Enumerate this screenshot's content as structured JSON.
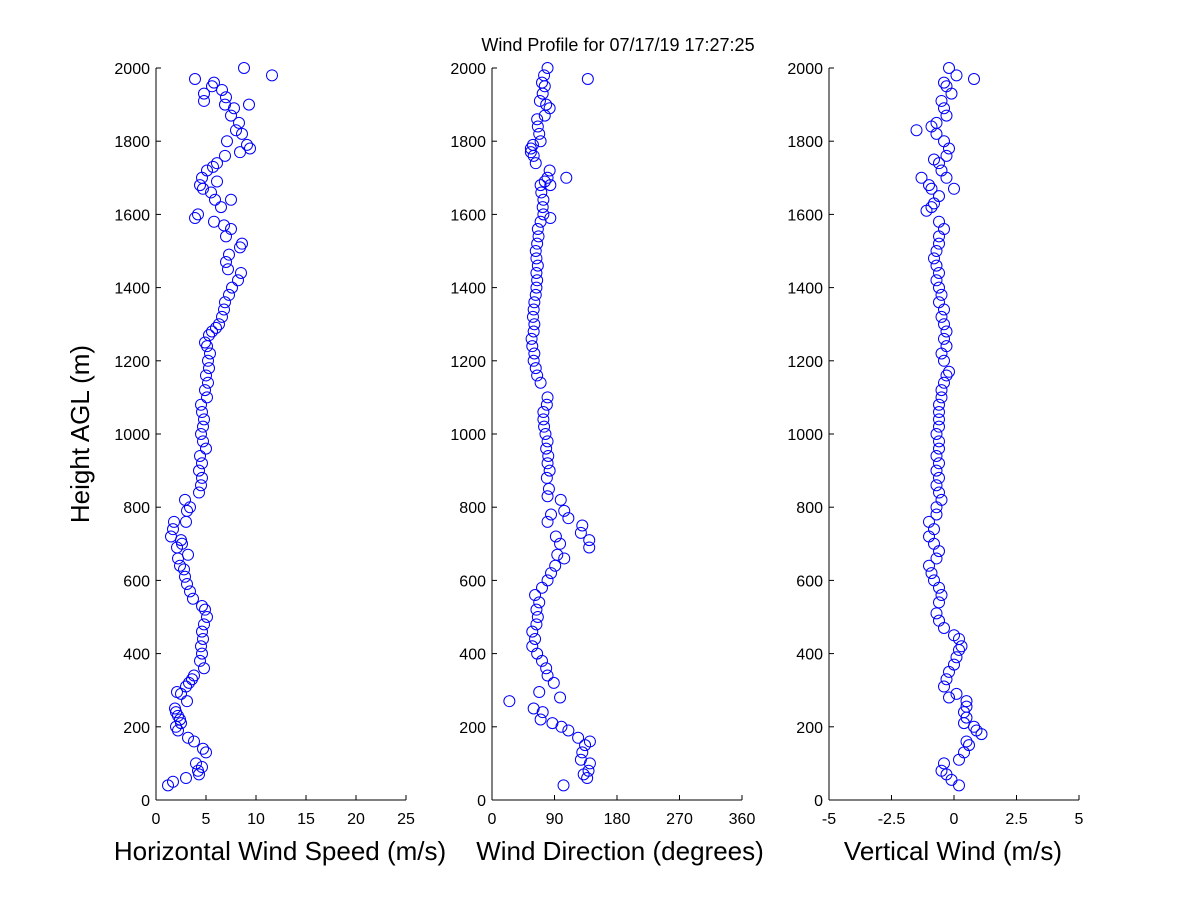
{
  "title": "Wind Profile for  07/17/19 17:27:25",
  "colors": {
    "marker": "#0000ff",
    "axis": "#000000",
    "background": "#ffffff"
  },
  "chart_data": [
    {
      "type": "scatter",
      "xlabel": "Horizontal Wind Speed (m/s)",
      "ylabel": "Height AGL (m)",
      "xlim": [
        0,
        25
      ],
      "ylim": [
        0,
        2000
      ],
      "xticks": [
        "0",
        "5",
        "10",
        "15",
        "20",
        "25"
      ],
      "yticks": [
        "0",
        "200",
        "400",
        "600",
        "800",
        "1000",
        "1200",
        "1400",
        "1600",
        "1800",
        "2000"
      ],
      "grid": false,
      "points": [
        [
          1.2,
          40
        ],
        [
          1.7,
          50
        ],
        [
          3.0,
          60
        ],
        [
          4.3,
          70
        ],
        [
          4.2,
          80
        ],
        [
          4.6,
          90
        ],
        [
          4.0,
          100
        ],
        [
          5.0,
          130
        ],
        [
          4.7,
          140
        ],
        [
          3.8,
          160
        ],
        [
          3.2,
          170
        ],
        [
          2.2,
          190
        ],
        [
          2.0,
          200
        ],
        [
          2.5,
          210
        ],
        [
          2.4,
          220
        ],
        [
          2.2,
          230
        ],
        [
          2.0,
          240
        ],
        [
          1.9,
          250
        ],
        [
          3.1,
          270
        ],
        [
          2.5,
          290
        ],
        [
          2.1,
          295
        ],
        [
          3.0,
          310
        ],
        [
          3.3,
          320
        ],
        [
          3.6,
          330
        ],
        [
          3.8,
          340
        ],
        [
          4.8,
          360
        ],
        [
          4.4,
          380
        ],
        [
          4.6,
          400
        ],
        [
          4.5,
          420
        ],
        [
          4.7,
          440
        ],
        [
          4.6,
          460
        ],
        [
          4.8,
          480
        ],
        [
          5.1,
          500
        ],
        [
          4.9,
          520
        ],
        [
          4.6,
          530
        ],
        [
          3.7,
          550
        ],
        [
          3.4,
          570
        ],
        [
          3.1,
          590
        ],
        [
          2.9,
          610
        ],
        [
          2.8,
          630
        ],
        [
          2.4,
          640
        ],
        [
          2.2,
          660
        ],
        [
          3.2,
          670
        ],
        [
          2.1,
          690
        ],
        [
          2.6,
          700
        ],
        [
          2.5,
          710
        ],
        [
          1.5,
          720
        ],
        [
          1.7,
          740
        ],
        [
          1.8,
          760
        ],
        [
          3.0,
          760
        ],
        [
          3.1,
          790
        ],
        [
          3.4,
          800
        ],
        [
          2.9,
          820
        ],
        [
          4.3,
          840
        ],
        [
          4.5,
          860
        ],
        [
          4.6,
          880
        ],
        [
          4.3,
          900
        ],
        [
          4.6,
          920
        ],
        [
          4.4,
          940
        ],
        [
          5.0,
          960
        ],
        [
          4.7,
          980
        ],
        [
          4.5,
          1000
        ],
        [
          4.7,
          1020
        ],
        [
          4.8,
          1040
        ],
        [
          4.6,
          1060
        ],
        [
          4.5,
          1080
        ],
        [
          5.1,
          1100
        ],
        [
          4.9,
          1120
        ],
        [
          5.2,
          1140
        ],
        [
          5.0,
          1160
        ],
        [
          5.3,
          1180
        ],
        [
          5.2,
          1200
        ],
        [
          5.4,
          1220
        ],
        [
          5.1,
          1240
        ],
        [
          4.9,
          1250
        ],
        [
          5.3,
          1270
        ],
        [
          5.6,
          1280
        ],
        [
          6.0,
          1290
        ],
        [
          6.3,
          1300
        ],
        [
          6.6,
          1320
        ],
        [
          6.8,
          1340
        ],
        [
          6.9,
          1360
        ],
        [
          7.3,
          1380
        ],
        [
          7.6,
          1400
        ],
        [
          8.2,
          1420
        ],
        [
          8.5,
          1440
        ],
        [
          7.2,
          1450
        ],
        [
          7.0,
          1470
        ],
        [
          7.3,
          1490
        ],
        [
          8.4,
          1510
        ],
        [
          8.6,
          1520
        ],
        [
          7.0,
          1540
        ],
        [
          7.5,
          1560
        ],
        [
          6.8,
          1570
        ],
        [
          5.8,
          1580
        ],
        [
          3.9,
          1590
        ],
        [
          4.2,
          1600
        ],
        [
          6.5,
          1620
        ],
        [
          5.9,
          1640
        ],
        [
          7.5,
          1640
        ],
        [
          5.5,
          1660
        ],
        [
          4.7,
          1670
        ],
        [
          4.4,
          1680
        ],
        [
          6.1,
          1690
        ],
        [
          4.6,
          1700
        ],
        [
          5.1,
          1720
        ],
        [
          5.7,
          1730
        ],
        [
          6.1,
          1740
        ],
        [
          6.9,
          1760
        ],
        [
          8.4,
          1770
        ],
        [
          9.4,
          1780
        ],
        [
          9.1,
          1790
        ],
        [
          7.1,
          1800
        ],
        [
          8.6,
          1820
        ],
        [
          8.0,
          1830
        ],
        [
          8.3,
          1850
        ],
        [
          7.5,
          1870
        ],
        [
          7.8,
          1890
        ],
        [
          6.9,
          1900
        ],
        [
          9.3,
          1900
        ],
        [
          4.8,
          1910
        ],
        [
          7.0,
          1920
        ],
        [
          4.8,
          1930
        ],
        [
          6.6,
          1940
        ],
        [
          5.6,
          1950
        ],
        [
          5.8,
          1960
        ],
        [
          3.9,
          1970
        ],
        [
          11.6,
          1980
        ],
        [
          8.8,
          2000
        ]
      ]
    },
    {
      "type": "scatter",
      "xlabel": "Wind Direction (degrees)",
      "xlim": [
        0,
        360
      ],
      "ylim": [
        0,
        2000
      ],
      "xticks": [
        "0",
        "90",
        "180",
        "270",
        "360"
      ],
      "yticks": [
        "0",
        "200",
        "400",
        "600",
        "800",
        "1000",
        "1200",
        "1400",
        "1600",
        "1800",
        "2000"
      ],
      "grid": false,
      "points": [
        [
          103,
          40
        ],
        [
          137,
          60
        ],
        [
          132,
          70
        ],
        [
          139,
          80
        ],
        [
          141,
          100
        ],
        [
          128,
          110
        ],
        [
          130,
          130
        ],
        [
          134,
          150
        ],
        [
          141,
          160
        ],
        [
          124,
          170
        ],
        [
          110,
          190
        ],
        [
          100,
          200
        ],
        [
          87,
          210
        ],
        [
          70,
          220
        ],
        [
          73,
          240
        ],
        [
          60,
          250
        ],
        [
          25,
          270
        ],
        [
          98,
          280
        ],
        [
          68,
          295
        ],
        [
          89,
          320
        ],
        [
          80,
          340
        ],
        [
          78,
          360
        ],
        [
          72,
          380
        ],
        [
          65,
          400
        ],
        [
          58,
          420
        ],
        [
          62,
          440
        ],
        [
          58,
          460
        ],
        [
          64,
          480
        ],
        [
          66,
          500
        ],
        [
          64,
          520
        ],
        [
          68,
          540
        ],
        [
          62,
          560
        ],
        [
          72,
          580
        ],
        [
          80,
          600
        ],
        [
          85,
          620
        ],
        [
          91,
          640
        ],
        [
          104,
          660
        ],
        [
          94,
          670
        ],
        [
          98,
          700
        ],
        [
          92,
          720
        ],
        [
          140,
          690
        ],
        [
          140,
          710
        ],
        [
          128,
          730
        ],
        [
          130,
          750
        ],
        [
          110,
          770
        ],
        [
          80,
          760
        ],
        [
          85,
          780
        ],
        [
          104,
          790
        ],
        [
          99,
          820
        ],
        [
          80,
          830
        ],
        [
          82,
          850
        ],
        [
          79,
          880
        ],
        [
          83,
          900
        ],
        [
          80,
          920
        ],
        [
          81,
          940
        ],
        [
          78,
          960
        ],
        [
          80,
          980
        ],
        [
          77,
          1000
        ],
        [
          75,
          1020
        ],
        [
          74,
          1040
        ],
        [
          74,
          1060
        ],
        [
          79,
          1080
        ],
        [
          80,
          1100
        ],
        [
          70,
          1140
        ],
        [
          65,
          1160
        ],
        [
          63,
          1180
        ],
        [
          60,
          1200
        ],
        [
          61,
          1220
        ],
        [
          58,
          1240
        ],
        [
          57,
          1260
        ],
        [
          60,
          1280
        ],
        [
          61,
          1300
        ],
        [
          59,
          1320
        ],
        [
          60,
          1340
        ],
        [
          61,
          1360
        ],
        [
          63,
          1380
        ],
        [
          64,
          1400
        ],
        [
          65,
          1420
        ],
        [
          64,
          1440
        ],
        [
          66,
          1460
        ],
        [
          64,
          1480
        ],
        [
          63,
          1500
        ],
        [
          65,
          1520
        ],
        [
          67,
          1540
        ],
        [
          66,
          1560
        ],
        [
          70,
          1580
        ],
        [
          84,
          1590
        ],
        [
          74,
          1600
        ],
        [
          73,
          1620
        ],
        [
          74,
          1640
        ],
        [
          71,
          1660
        ],
        [
          70,
          1680
        ],
        [
          76,
          1690
        ],
        [
          80,
          1700
        ],
        [
          107,
          1700
        ],
        [
          83,
          1720
        ],
        [
          84,
          1680
        ],
        [
          63,
          1740
        ],
        [
          60,
          1760
        ],
        [
          56,
          1770
        ],
        [
          56,
          1780
        ],
        [
          59,
          1790
        ],
        [
          70,
          1800
        ],
        [
          68,
          1820
        ],
        [
          66,
          1840
        ],
        [
          65,
          1860
        ],
        [
          76,
          1870
        ],
        [
          83,
          1890
        ],
        [
          78,
          1900
        ],
        [
          69,
          1910
        ],
        [
          73,
          1930
        ],
        [
          76,
          1950
        ],
        [
          72,
          1960
        ],
        [
          138,
          1970
        ],
        [
          75,
          1980
        ],
        [
          80,
          2000
        ]
      ]
    },
    {
      "type": "scatter",
      "xlabel": "Vertical Wind (m/s)",
      "xlim": [
        -5,
        5
      ],
      "ylim": [
        0,
        2000
      ],
      "xticks": [
        "-5",
        "-2.5",
        "0",
        "2.5",
        "5"
      ],
      "yticks": [
        "0",
        "200",
        "400",
        "600",
        "800",
        "1000",
        "1200",
        "1400",
        "1600",
        "1800",
        "2000"
      ],
      "grid": false,
      "points": [
        [
          0.2,
          40
        ],
        [
          -0.1,
          55
        ],
        [
          -0.3,
          70
        ],
        [
          -0.5,
          80
        ],
        [
          -0.4,
          100
        ],
        [
          0.2,
          110
        ],
        [
          0.4,
          130
        ],
        [
          0.6,
          150
        ],
        [
          0.5,
          160
        ],
        [
          1.1,
          180
        ],
        [
          0.9,
          190
        ],
        [
          0.8,
          200
        ],
        [
          0.4,
          210
        ],
        [
          0.5,
          225
        ],
        [
          0.4,
          240
        ],
        [
          0.5,
          255
        ],
        [
          0.5,
          270
        ],
        [
          0.1,
          290
        ],
        [
          -0.2,
          280
        ],
        [
          -0.4,
          310
        ],
        [
          -0.3,
          330
        ],
        [
          -0.2,
          350
        ],
        [
          0.0,
          370
        ],
        [
          0.1,
          390
        ],
        [
          0.2,
          410
        ],
        [
          0.3,
          420
        ],
        [
          0.2,
          440
        ],
        [
          0.0,
          450
        ],
        [
          -0.4,
          470
        ],
        [
          -0.6,
          490
        ],
        [
          -0.7,
          510
        ],
        [
          -0.6,
          540
        ],
        [
          -0.5,
          560
        ],
        [
          -0.6,
          580
        ],
        [
          -0.8,
          600
        ],
        [
          -0.9,
          620
        ],
        [
          -1.0,
          640
        ],
        [
          -0.7,
          660
        ],
        [
          -0.6,
          680
        ],
        [
          -0.8,
          700
        ],
        [
          -1.0,
          720
        ],
        [
          -0.8,
          740
        ],
        [
          -1.0,
          760
        ],
        [
          -0.7,
          780
        ],
        [
          -0.7,
          800
        ],
        [
          -0.5,
          820
        ],
        [
          -0.6,
          840
        ],
        [
          -0.7,
          860
        ],
        [
          -0.6,
          880
        ],
        [
          -0.7,
          900
        ],
        [
          -0.6,
          920
        ],
        [
          -0.7,
          940
        ],
        [
          -0.6,
          960
        ],
        [
          -0.6,
          980
        ],
        [
          -0.7,
          1000
        ],
        [
          -0.6,
          1020
        ],
        [
          -0.6,
          1040
        ],
        [
          -0.6,
          1060
        ],
        [
          -0.6,
          1080
        ],
        [
          -0.5,
          1100
        ],
        [
          -0.5,
          1120
        ],
        [
          -0.4,
          1140
        ],
        [
          -0.3,
          1160
        ],
        [
          -0.2,
          1170
        ],
        [
          -0.4,
          1200
        ],
        [
          -0.5,
          1220
        ],
        [
          -0.3,
          1240
        ],
        [
          -0.4,
          1260
        ],
        [
          -0.3,
          1280
        ],
        [
          -0.4,
          1300
        ],
        [
          -0.5,
          1320
        ],
        [
          -0.4,
          1340
        ],
        [
          -0.6,
          1360
        ],
        [
          -0.5,
          1380
        ],
        [
          -0.6,
          1400
        ],
        [
          -0.7,
          1420
        ],
        [
          -0.6,
          1440
        ],
        [
          -0.7,
          1460
        ],
        [
          -0.8,
          1480
        ],
        [
          -0.7,
          1500
        ],
        [
          -0.6,
          1520
        ],
        [
          -0.6,
          1540
        ],
        [
          -0.4,
          1560
        ],
        [
          -0.6,
          1580
        ],
        [
          -1.1,
          1610
        ],
        [
          -0.9,
          1620
        ],
        [
          -0.8,
          1630
        ],
        [
          -0.6,
          1650
        ],
        [
          -0.9,
          1670
        ],
        [
          0.0,
          1670
        ],
        [
          -1.0,
          1680
        ],
        [
          -1.3,
          1700
        ],
        [
          -0.3,
          1700
        ],
        [
          -0.5,
          1720
        ],
        [
          -0.6,
          1740
        ],
        [
          -0.8,
          1750
        ],
        [
          -0.3,
          1760
        ],
        [
          -0.2,
          1780
        ],
        [
          -0.4,
          1800
        ],
        [
          -0.7,
          1820
        ],
        [
          -1.5,
          1830
        ],
        [
          -0.9,
          1840
        ],
        [
          -0.7,
          1850
        ],
        [
          -0.3,
          1870
        ],
        [
          -0.4,
          1890
        ],
        [
          -0.5,
          1910
        ],
        [
          -0.1,
          1930
        ],
        [
          -0.3,
          1950
        ],
        [
          -0.4,
          1960
        ],
        [
          0.8,
          1970
        ],
        [
          0.1,
          1980
        ],
        [
          -0.2,
          2000
        ]
      ]
    }
  ]
}
